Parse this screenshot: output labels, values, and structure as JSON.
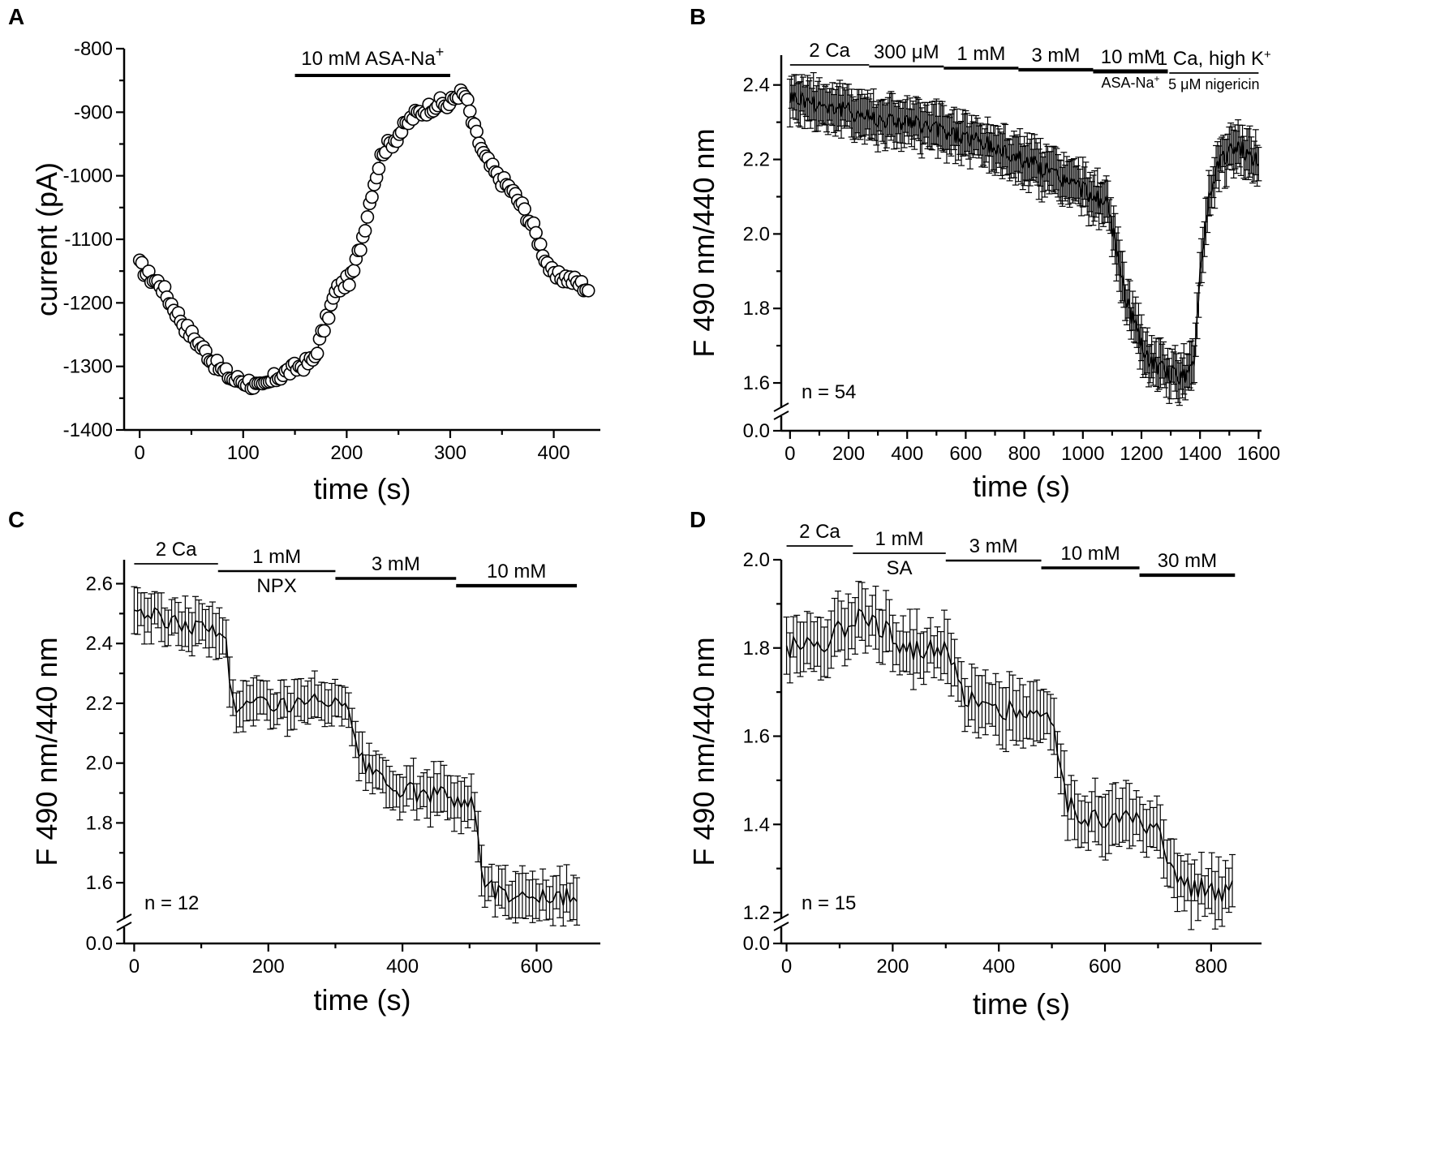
{
  "chart_data": [
    {
      "panel": "A",
      "type": "scatter",
      "title": "",
      "xlabel": "time (s)",
      "ylabel": "current (pA)",
      "xlim": [
        -15,
        445
      ],
      "ylim": [
        -1400,
        -800
      ],
      "y_inverted": true,
      "xticks": [
        0,
        100,
        200,
        300,
        400
      ],
      "yticks": [
        -800,
        -900,
        -1000,
        -1100,
        -1200,
        -1300,
        -1400
      ],
      "marker": "open-circle",
      "connected": true,
      "keypoints": [
        [
          0,
          -1140
        ],
        [
          10,
          -1160
        ],
        [
          20,
          -1170
        ],
        [
          30,
          -1200
        ],
        [
          45,
          -1240
        ],
        [
          60,
          -1270
        ],
        [
          75,
          -1300
        ],
        [
          90,
          -1320
        ],
        [
          105,
          -1325
        ],
        [
          118,
          -1335
        ],
        [
          130,
          -1320
        ],
        [
          140,
          -1310
        ],
        [
          155,
          -1300
        ],
        [
          168,
          -1290
        ],
        [
          178,
          -1240
        ],
        [
          190,
          -1180
        ],
        [
          205,
          -1160
        ],
        [
          215,
          -1100
        ],
        [
          225,
          -1020
        ],
        [
          235,
          -960
        ],
        [
          245,
          -945
        ],
        [
          255,
          -925
        ],
        [
          265,
          -905
        ],
        [
          278,
          -895
        ],
        [
          288,
          -885
        ],
        [
          298,
          -890
        ],
        [
          308,
          -870
        ],
        [
          315,
          -875
        ],
        [
          322,
          -920
        ],
        [
          333,
          -970
        ],
        [
          345,
          -1000
        ],
        [
          358,
          -1020
        ],
        [
          370,
          -1050
        ],
        [
          380,
          -1080
        ],
        [
          392,
          -1130
        ],
        [
          400,
          -1160
        ],
        [
          412,
          -1160
        ],
        [
          425,
          -1170
        ],
        [
          435,
          -1180
        ]
      ],
      "annotations": [
        {
          "text": "10 mM ASA-Na",
          "sup": "+",
          "x_start": 150,
          "x_end": 300
        }
      ]
    },
    {
      "panel": "B",
      "type": "line",
      "title": "",
      "xlabel": "time (s)",
      "ylabel": "F 490 nm/440 nm",
      "xlim": [
        -30,
        1610
      ],
      "y_break": {
        "upper": [
          1.55,
          2.48
        ],
        "lower_tick": 0.0
      },
      "xticks": [
        0,
        200,
        400,
        600,
        800,
        1000,
        1200,
        1400,
        1600
      ],
      "yticks": [
        1.6,
        1.8,
        2.0,
        2.2,
        2.4
      ],
      "error_bars": true,
      "error_half_width": 0.055,
      "keypoints": [
        [
          0,
          2.37
        ],
        [
          100,
          2.35
        ],
        [
          200,
          2.33
        ],
        [
          300,
          2.31
        ],
        [
          400,
          2.3
        ],
        [
          500,
          2.28
        ],
        [
          600,
          2.26
        ],
        [
          700,
          2.23
        ],
        [
          800,
          2.2
        ],
        [
          900,
          2.16
        ],
        [
          1000,
          2.12
        ],
        [
          1080,
          2.08
        ],
        [
          1110,
          1.98
        ],
        [
          1140,
          1.85
        ],
        [
          1170,
          1.77
        ],
        [
          1200,
          1.7
        ],
        [
          1240,
          1.65
        ],
        [
          1280,
          1.63
        ],
        [
          1320,
          1.62
        ],
        [
          1360,
          1.62
        ],
        [
          1380,
          1.65
        ],
        [
          1400,
          1.9
        ],
        [
          1430,
          2.1
        ],
        [
          1460,
          2.19
        ],
        [
          1500,
          2.22
        ],
        [
          1540,
          2.23
        ],
        [
          1580,
          2.2
        ],
        [
          1600,
          2.19
        ]
      ],
      "annotations": [
        {
          "text": "2 Ca",
          "x_start": 0,
          "x_end": 270,
          "weight": 1
        },
        {
          "text": "300 μM",
          "x_start": 270,
          "x_end": 525,
          "weight": 2
        },
        {
          "text": "1 mM",
          "x_start": 525,
          "x_end": 780,
          "weight": 3
        },
        {
          "text": "3 mM",
          "x_start": 780,
          "x_end": 1035,
          "weight": 4
        },
        {
          "text": "10 mM",
          "sub": "ASA-Na",
          "subsup": "+",
          "x_start": 1035,
          "x_end": 1290,
          "weight": 5
        },
        {
          "text": "1 Ca, high K",
          "sup": "+",
          "sub": "5 μM nigericin",
          "x_start": 1295,
          "x_end": 1600,
          "weight": 1
        }
      ],
      "n_label": "n = 54"
    },
    {
      "panel": "C",
      "type": "line",
      "title": "",
      "xlabel": "time (s)",
      "ylabel": "F 490 nm/440 nm",
      "xlim": [
        -15,
        695
      ],
      "y_break": {
        "upper": [
          1.5,
          2.68
        ],
        "lower_tick": 0.0
      },
      "xticks": [
        0,
        200,
        400,
        600
      ],
      "yticks": [
        1.6,
        1.8,
        2.0,
        2.2,
        2.4,
        2.6
      ],
      "error_bars": true,
      "error_half_width": 0.07,
      "keypoints": [
        [
          0,
          2.52
        ],
        [
          30,
          2.49
        ],
        [
          60,
          2.47
        ],
        [
          90,
          2.46
        ],
        [
          120,
          2.44
        ],
        [
          137,
          2.43
        ],
        [
          145,
          2.2
        ],
        [
          170,
          2.19
        ],
        [
          200,
          2.21
        ],
        [
          230,
          2.19
        ],
        [
          260,
          2.2
        ],
        [
          290,
          2.21
        ],
        [
          310,
          2.18
        ],
        [
          320,
          2.16
        ],
        [
          330,
          2.05
        ],
        [
          350,
          1.97
        ],
        [
          380,
          1.92
        ],
        [
          420,
          1.9
        ],
        [
          460,
          1.89
        ],
        [
          490,
          1.88
        ],
        [
          505,
          1.86
        ],
        [
          512,
          1.75
        ],
        [
          520,
          1.61
        ],
        [
          540,
          1.57
        ],
        [
          580,
          1.56
        ],
        [
          620,
          1.55
        ],
        [
          660,
          1.55
        ]
      ],
      "annotations": [
        {
          "text": "2 Ca",
          "x_start": 0,
          "x_end": 125,
          "weight": 1
        },
        {
          "text": "1 mM",
          "sub": "NPX",
          "x_start": 125,
          "x_end": 300,
          "weight": 2
        },
        {
          "text": "3 mM",
          "x_start": 300,
          "x_end": 480,
          "weight": 3
        },
        {
          "text": "10 mM",
          "x_start": 480,
          "x_end": 660,
          "weight": 4
        }
      ],
      "n_label": "n = 12"
    },
    {
      "panel": "D",
      "type": "line",
      "title": "",
      "xlabel": "time (s)",
      "ylabel": "F 490 nm/440 nm",
      "xlim": [
        -10,
        895
      ],
      "y_break": {
        "upper": [
          1.2,
          2.0
        ],
        "lower_tick": 0.0
      },
      "xticks": [
        0,
        200,
        400,
        600,
        800
      ],
      "yticks": [
        1.2,
        1.4,
        1.6,
        1.8,
        2.0
      ],
      "error_bars": true,
      "error_half_width": 0.06,
      "keypoints": [
        [
          0,
          1.8
        ],
        [
          40,
          1.81
        ],
        [
          80,
          1.82
        ],
        [
          110,
          1.85
        ],
        [
          140,
          1.89
        ],
        [
          160,
          1.87
        ],
        [
          200,
          1.82
        ],
        [
          240,
          1.8
        ],
        [
          280,
          1.79
        ],
        [
          300,
          1.8
        ],
        [
          330,
          1.7
        ],
        [
          360,
          1.68
        ],
        [
          400,
          1.66
        ],
        [
          440,
          1.66
        ],
        [
          480,
          1.65
        ],
        [
          500,
          1.64
        ],
        [
          510,
          1.55
        ],
        [
          530,
          1.45
        ],
        [
          560,
          1.42
        ],
        [
          600,
          1.41
        ],
        [
          640,
          1.41
        ],
        [
          680,
          1.4
        ],
        [
          700,
          1.38
        ],
        [
          720,
          1.3
        ],
        [
          740,
          1.27
        ],
        [
          770,
          1.26
        ],
        [
          800,
          1.25
        ],
        [
          840,
          1.25
        ]
      ],
      "annotations": [
        {
          "text": "2 Ca",
          "x_start": 0,
          "x_end": 125,
          "weight": 1
        },
        {
          "text": "1 mM",
          "sub": "SA",
          "x_start": 125,
          "x_end": 300,
          "weight": 1
        },
        {
          "text": "3 mM",
          "x_start": 300,
          "x_end": 480,
          "weight": 2
        },
        {
          "text": "10 mM",
          "x_start": 480,
          "x_end": 665,
          "weight": 3
        },
        {
          "text": "30 mM",
          "x_start": 665,
          "x_end": 845,
          "weight": 4
        }
      ],
      "n_label": "n = 15"
    }
  ]
}
